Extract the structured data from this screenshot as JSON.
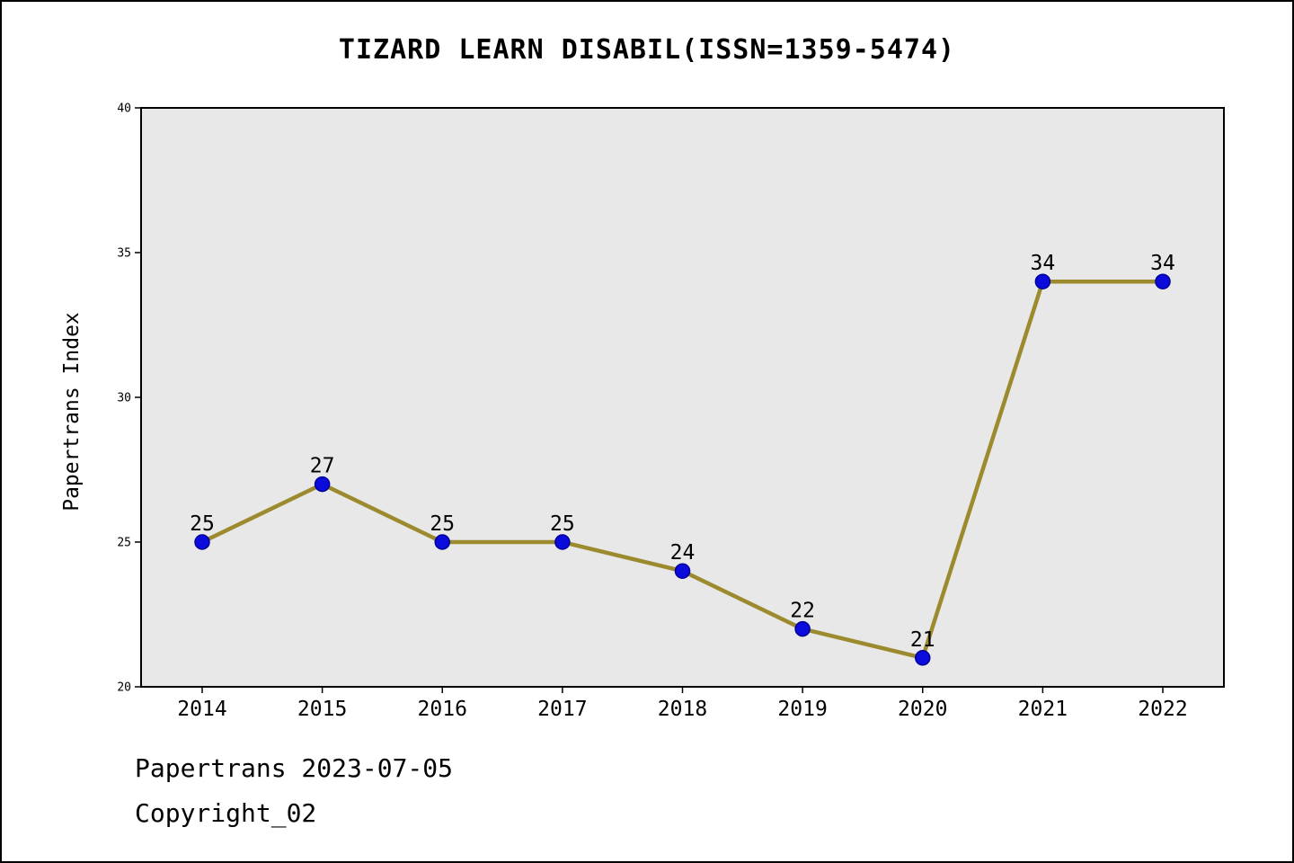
{
  "title": "TIZARD LEARN DISABIL(ISSN=1359-5474)",
  "footer": {
    "line1": "Papertrans 2023-07-05",
    "line2": "Copyright_02"
  },
  "chart_data": {
    "type": "line",
    "categories": [
      "2014",
      "2015",
      "2016",
      "2017",
      "2018",
      "2019",
      "2020",
      "2021",
      "2022"
    ],
    "values": [
      25,
      27,
      25,
      25,
      24,
      22,
      21,
      34,
      34
    ],
    "title": "TIZARD LEARN DISABIL(ISSN=1359-5474)",
    "xlabel": "",
    "ylabel": "Papertrans Index",
    "ylim": [
      20,
      40
    ],
    "yticks": [
      20,
      25,
      30,
      35,
      40
    ],
    "grid": false,
    "legend": null,
    "show_point_labels": true,
    "line_color": "#9c8a2f",
    "marker_color": "#0b0bdc",
    "marker_edge_color": "#000099",
    "plot_bg": "#e8e8e8",
    "axis_color": "#000000"
  }
}
